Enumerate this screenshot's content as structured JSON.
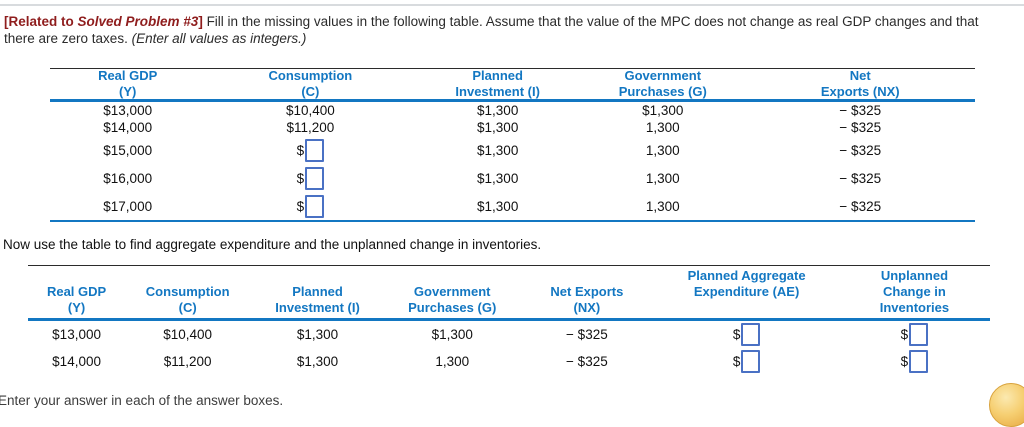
{
  "problem": {
    "related_tag_open": "[Related to ",
    "related_tag_title": "Solved Problem #3",
    "related_tag_close": "]",
    "statement_line1": " Fill in the missing values in the following table. Assume that the value of the  MPC does not change as real GDP changes and that",
    "statement_line2": "there are zero taxes.  ",
    "statement_note_italic": "(Enter all values as integers.)"
  },
  "mid_instruction": "Now use the table to find aggregate expenditure and the unplanned change in inventories.",
  "footer_instruction": "Enter your answer in each of the answer boxes.",
  "colors": {
    "header_blue": "#1377c2",
    "related_red": "#8f1d1d",
    "input_border_blue": "#4a71c4",
    "coin_yellow": "#f6cf72"
  },
  "icons": {
    "bottom_right": "coin-icon"
  },
  "table1": {
    "headers": [
      [
        "Real GDP",
        "(Y)"
      ],
      [
        "Consumption",
        "(C)"
      ],
      [
        "Planned",
        "Investment (I)"
      ],
      [
        "Government",
        "Purchases (G)"
      ],
      [
        "Net",
        "Exports (NX)"
      ]
    ],
    "rows": [
      [
        "$13,000",
        "$10,400",
        "$1,300",
        "$1,300",
        "− $325"
      ],
      [
        "$14,000",
        "$11,200",
        "$1,300",
        "1,300",
        "− $325"
      ],
      [
        "$15,000",
        {
          "input": true,
          "prefix": "$"
        },
        "$1,300",
        "1,300",
        "− $325"
      ],
      [
        "$16,000",
        {
          "input": true,
          "prefix": "$"
        },
        "$1,300",
        "1,300",
        "− $325"
      ],
      [
        "$17,000",
        {
          "input": true,
          "prefix": "$"
        },
        "$1,300",
        "1,300",
        "− $325"
      ]
    ]
  },
  "table2": {
    "headers": [
      [
        "Real GDP",
        "(Y)"
      ],
      [
        "Consumption",
        "(C)"
      ],
      [
        "Planned",
        "Investment (I)"
      ],
      [
        "Government",
        "Purchases (G)"
      ],
      [
        "Net Exports",
        "(NX)"
      ],
      [
        "Planned Aggregate",
        "Expenditure (AE)"
      ],
      [
        "Unplanned",
        "Change in",
        "Inventories"
      ]
    ],
    "rows": [
      [
        "$13,000",
        "$10,400",
        "$1,300",
        "$1,300",
        "− $325",
        {
          "input": true,
          "prefix": "$"
        },
        {
          "input": true,
          "prefix": "$"
        }
      ],
      [
        "$14,000",
        "$11,200",
        "$1,300",
        "1,300",
        "− $325",
        {
          "input": true,
          "prefix": "$"
        },
        {
          "input": true,
          "prefix": "$"
        }
      ]
    ]
  }
}
